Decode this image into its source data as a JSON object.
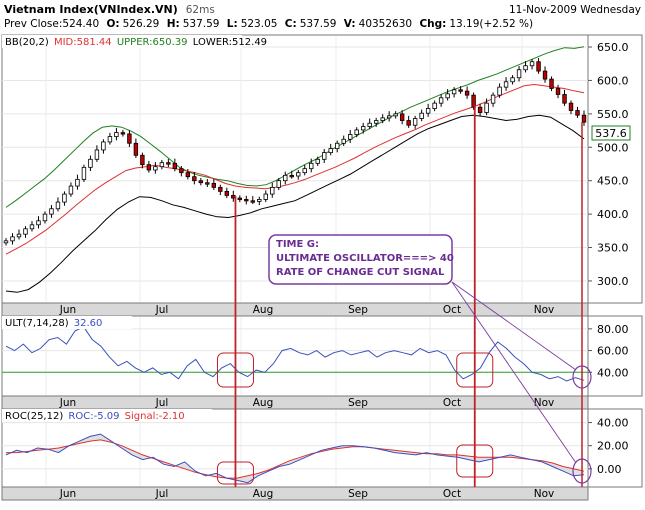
{
  "header": {
    "title": "Vietnam Index",
    "symbol": "(VNIndex.VN)",
    "interval": "62ms",
    "date": "11-Nov-2009 Wednesday",
    "prev_close_label": "Prev Close:",
    "prev_close": "524.40",
    "open_label": "O:",
    "open": "526.29",
    "high_label": "H:",
    "high": "537.59",
    "low_label": "L:",
    "low": "523.05",
    "close_label": "C:",
    "close": "537.59",
    "volume_label": "V:",
    "volume": "40352630",
    "change_label": "Chg:",
    "change": "13.19(+2.52 %)"
  },
  "colors": {
    "up_candle": "#ffffff",
    "down_candle": "#c00000",
    "mid_band": "#e03030",
    "upper_band": "#208020",
    "lower_band": "#000000",
    "ult_line": "#3a4fc0",
    "ult_ref": "#30a030",
    "roc_line": "#3a4fc0",
    "signal_line": "#e03030",
    "marker": "#c0202a",
    "note_border": "#7a3ca0",
    "axis_band": "#d8d8d8"
  },
  "price_panel": {
    "indicator_label": "BB(20,2)",
    "mid_label": "MID:",
    "mid": "581.44",
    "upper_label": "UPPER:",
    "upper": "650.39",
    "lower_label": "LOWER:",
    "lower": "512.49",
    "last_price_tag": "537.6",
    "y_ticks": [
      "650.0",
      "600.0",
      "550.0",
      "500.0",
      "450.0",
      "400.0",
      "350.0",
      "300.0"
    ],
    "months": [
      "Jun",
      "Jul",
      "Aug",
      "Sep",
      "Oct",
      "Nov"
    ]
  },
  "ult_panel": {
    "label": "ULT(7,14,28)",
    "value": "32.60",
    "y_ticks": [
      "80.00",
      "60.00",
      "40.00"
    ],
    "months": [
      "Jun",
      "Jul",
      "Aug",
      "Sep",
      "Oct",
      "Nov"
    ]
  },
  "roc_panel": {
    "label": "ROC(25,12)",
    "roc_label": "ROC:",
    "roc_value": "-5.09",
    "signal_label": "Signal:",
    "signal_value": "-2.10",
    "y_ticks": [
      "40.00",
      "20.00",
      "0.00"
    ],
    "months": [
      "Jun",
      "Jul",
      "Aug",
      "Sep",
      "Oct",
      "Nov"
    ]
  },
  "annotation": {
    "line1": "TIME G:",
    "line2": "ULTIMATE OSCILLATOR===> 40",
    "line3": "RATE OF CHANGE CUT SIGNAL"
  },
  "chart_data": {
    "type": "candlestick",
    "bar_interval": "1 day",
    "ylim": [
      270,
      665
    ],
    "close": [
      360,
      366,
      370,
      378,
      384,
      390,
      400,
      408,
      418,
      430,
      442,
      452,
      470,
      482,
      496,
      508,
      516,
      522,
      520,
      506,
      488,
      474,
      466,
      471,
      477,
      476,
      468,
      462,
      456,
      450,
      447,
      446,
      440,
      434,
      428,
      424,
      422,
      420,
      419,
      422,
      430,
      440,
      450,
      458,
      457,
      462,
      468,
      476,
      482,
      492,
      498,
      506,
      512,
      519,
      526,
      531,
      536,
      540,
      544,
      547,
      550,
      540,
      533,
      543,
      551,
      558,
      566,
      574,
      580,
      586,
      584,
      578,
      560,
      552,
      566,
      578,
      590,
      598,
      604,
      616,
      622,
      628,
      614,
      602,
      588,
      579,
      566,
      555,
      548,
      537.59
    ],
    "bb_upper": [
      410,
      420,
      431,
      442,
      453,
      466,
      480,
      494,
      508,
      521,
      530,
      532,
      530,
      524,
      516,
      505,
      494,
      482,
      470,
      463,
      458,
      455,
      452,
      450,
      446,
      443,
      442,
      444,
      450,
      458,
      466,
      474,
      481,
      489,
      498,
      506,
      514,
      522,
      530,
      538,
      546,
      553,
      560,
      566,
      572,
      578,
      584,
      589,
      594,
      600,
      605,
      610,
      616,
      622,
      628,
      634,
      640,
      645,
      649,
      648,
      650.39
    ],
    "bb_mid": [
      340,
      348,
      356,
      366,
      376,
      388,
      400,
      413,
      425,
      437,
      447,
      456,
      465,
      469,
      471,
      473,
      470,
      468,
      465,
      462,
      458,
      452,
      446,
      442,
      440,
      439,
      438,
      440,
      443,
      447,
      452,
      458,
      464,
      470,
      477,
      484,
      492,
      500,
      507,
      514,
      520,
      526,
      533,
      539,
      545,
      551,
      556,
      561,
      567,
      574,
      580,
      586,
      592,
      594,
      592,
      590,
      588,
      584.5,
      581.44
    ],
    "bb_lower": [
      285,
      283,
      287,
      298,
      312,
      328,
      345,
      360,
      375,
      392,
      407,
      418,
      426,
      425,
      420,
      414,
      410,
      405,
      400,
      396,
      395,
      398,
      402,
      408,
      412,
      416,
      420,
      428,
      436,
      444,
      452,
      460,
      470,
      480,
      490,
      500,
      510,
      520,
      528,
      534,
      540,
      546,
      548,
      546,
      543,
      540,
      542,
      546,
      548,
      545,
      535,
      525,
      512.49
    ],
    "ult": [
      64,
      60,
      66,
      58,
      62,
      70,
      72,
      66,
      78,
      82,
      70,
      64,
      54,
      46,
      50,
      44,
      40,
      44,
      38,
      40,
      34,
      46,
      52,
      40,
      36,
      44,
      48,
      40,
      36,
      42,
      40,
      48,
      60,
      62,
      58,
      56,
      60,
      54,
      58,
      60,
      56,
      58,
      60,
      54,
      58,
      60,
      58,
      56,
      62,
      58,
      60,
      56,
      42,
      34,
      38,
      44,
      58,
      68,
      62,
      54,
      48,
      40,
      38,
      34,
      36,
      32,
      35,
      32.6
    ],
    "ult_ref": 40,
    "roc": [
      12,
      16,
      14,
      18,
      17,
      14,
      20,
      24,
      28,
      30,
      24,
      18,
      12,
      8,
      10,
      4,
      2,
      6,
      -2,
      -6,
      -4,
      -8,
      -10,
      -12,
      -6,
      -2,
      2,
      4,
      8,
      12,
      16,
      18,
      20,
      20,
      19,
      18,
      16,
      14,
      13,
      12,
      14,
      12,
      11,
      10,
      8,
      6,
      8,
      10,
      12,
      10,
      8,
      6,
      2,
      -2,
      -6,
      -5.09
    ],
    "roc_signal": [
      14,
      14,
      15,
      16,
      17,
      18,
      20,
      22,
      24,
      25,
      23,
      20,
      16,
      12,
      9,
      6,
      3,
      0,
      -3,
      -5,
      -7,
      -8,
      -8,
      -6,
      -4,
      -1,
      3,
      7,
      10,
      13,
      15,
      17,
      18,
      19,
      19,
      18,
      17,
      16,
      15,
      14,
      13,
      13,
      12,
      12,
      11,
      10,
      10,
      10,
      10,
      9,
      8,
      7,
      5,
      2,
      0,
      -2.1
    ],
    "signal_markers_x_frac": [
      0.397,
      0.811
    ],
    "months": [
      "Jun",
      "Jul",
      "Aug",
      "Sep",
      "Oct",
      "Nov"
    ]
  }
}
